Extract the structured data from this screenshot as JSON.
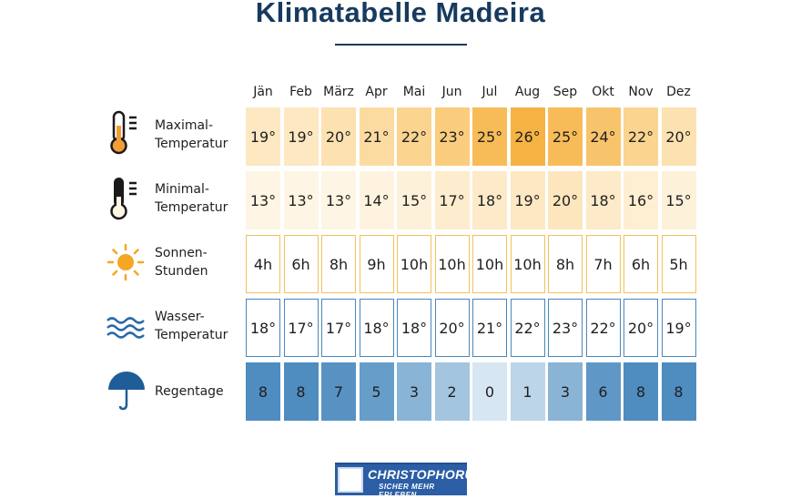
{
  "title": "Klimatabelle Madeira",
  "chart_data": {
    "type": "table",
    "title": "Klimatabelle Madeira",
    "months": [
      "Jän",
      "Feb",
      "März",
      "Apr",
      "Mai",
      "Jun",
      "Jul",
      "Aug",
      "Sep",
      "Okt",
      "Nov",
      "Dez"
    ],
    "rows": [
      {
        "id": "max",
        "label_line1": "Maximal-",
        "label_line2": "Temperatur",
        "icon": "thermometer-hot-icon",
        "unit": "°",
        "values": [
          19,
          19,
          20,
          21,
          22,
          23,
          25,
          26,
          25,
          24,
          22,
          20
        ],
        "display": [
          "19°",
          "19°",
          "20°",
          "21°",
          "22°",
          "23°",
          "25°",
          "26°",
          "25°",
          "24°",
          "22°",
          "20°"
        ]
      },
      {
        "id": "min",
        "label_line1": "Minimal-",
        "label_line2": "Temperatur",
        "icon": "thermometer-cold-icon",
        "unit": "°",
        "values": [
          13,
          13,
          13,
          14,
          15,
          17,
          18,
          19,
          20,
          18,
          16,
          15
        ],
        "display": [
          "13°",
          "13°",
          "13°",
          "14°",
          "15°",
          "17°",
          "18°",
          "19°",
          "20°",
          "18°",
          "16°",
          "15°"
        ]
      },
      {
        "id": "sun",
        "label_line1": "Sonnen-",
        "label_line2": "Stunden",
        "icon": "sun-icon",
        "unit": "h",
        "values": [
          4,
          6,
          8,
          9,
          10,
          10,
          10,
          10,
          8,
          7,
          6,
          5
        ],
        "display": [
          "4h",
          "6h",
          "8h",
          "9h",
          "10h",
          "10h",
          "10h",
          "10h",
          "8h",
          "7h",
          "6h",
          "5h"
        ]
      },
      {
        "id": "water",
        "label_line1": "Wasser-",
        "label_line2": "Temperatur",
        "icon": "waves-icon",
        "unit": "°",
        "values": [
          18,
          17,
          17,
          18,
          18,
          20,
          21,
          22,
          23,
          22,
          20,
          19
        ],
        "display": [
          "18°",
          "17°",
          "17°",
          "18°",
          "18°",
          "20°",
          "21°",
          "22°",
          "23°",
          "22°",
          "20°",
          "19°"
        ]
      },
      {
        "id": "rain",
        "label_line1": "Regentage",
        "label_line2": "",
        "icon": "umbrella-icon",
        "unit": "",
        "values": [
          8,
          8,
          7,
          5,
          3,
          2,
          0,
          1,
          3,
          6,
          8,
          8
        ],
        "display": [
          "8",
          "8",
          "7",
          "5",
          "3",
          "2",
          "0",
          "1",
          "3",
          "6",
          "8",
          "8"
        ]
      }
    ]
  },
  "colors": {
    "title": "#173a5e",
    "hot_scale": [
      "#fde8c2",
      "#fbd188",
      "#f5b344"
    ],
    "cold_scale": [
      "#fef5e4",
      "#fde6bd"
    ],
    "sun_border": "#f2c25a",
    "water_border": "#4a87b8",
    "rain_scale": [
      "#d6e6f2",
      "#6fa3cc",
      "#4f8cc0"
    ]
  },
  "logo": {
    "name": "CHRISTOPHORUS",
    "tagline": "SICHER MEHR ERLEBEN"
  }
}
